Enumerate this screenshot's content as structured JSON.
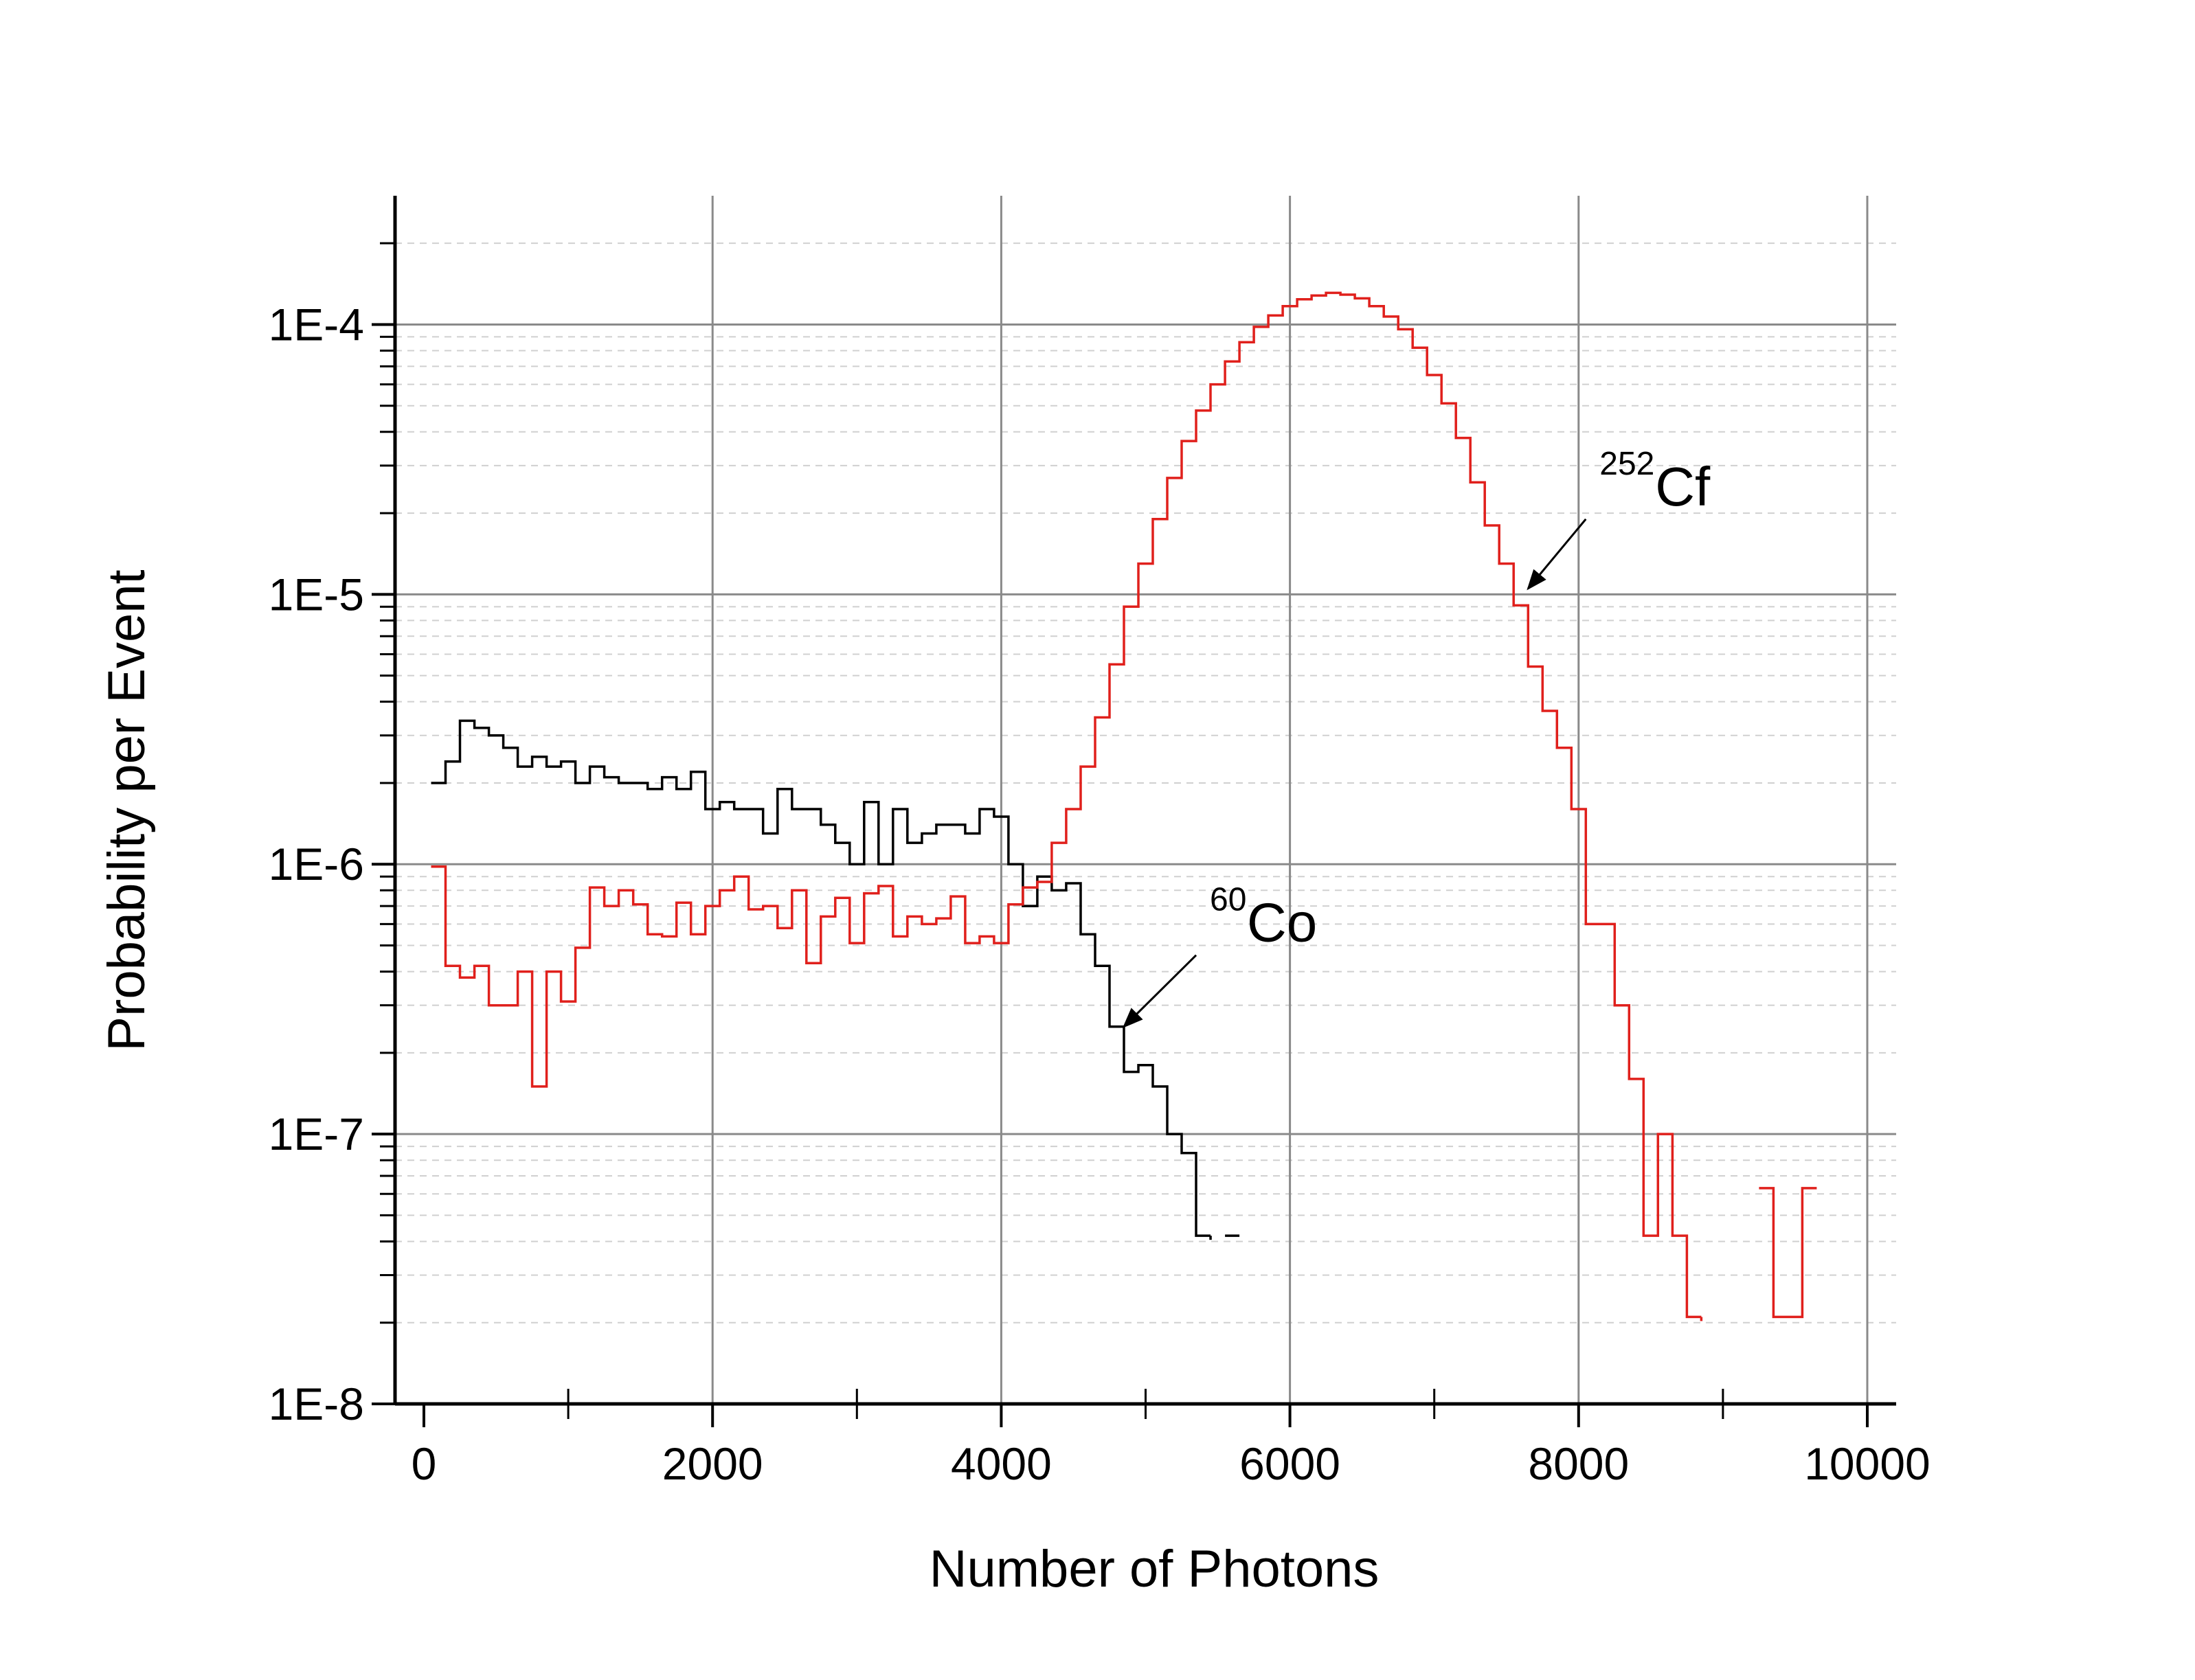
{
  "chart_data": {
    "type": "line",
    "title": "",
    "xlabel": "Number of Photons",
    "ylabel": "Probability per Event",
    "xlim": [
      -200,
      10200
    ],
    "ylim": [
      1e-08,
      0.0003
    ],
    "yscale": "log",
    "grid": true,
    "legend": "none",
    "x_ticks": [
      0,
      2000,
      4000,
      6000,
      8000,
      10000
    ],
    "x_tick_labels": [
      "0",
      "2000",
      "4000",
      "6000",
      "8000",
      "10000"
    ],
    "y_ticks": [
      1e-08,
      1e-07,
      1e-06,
      1e-05,
      0.0001
    ],
    "y_tick_labels": [
      "1E-8",
      "1E-7",
      "1E-6",
      "1E-5",
      "1E-4"
    ],
    "bin_width": 100,
    "series": [
      {
        "color": "#000000",
        "style": "step",
        "bin_starts": [
          50,
          150,
          250,
          350,
          450,
          550,
          650,
          750,
          850,
          950,
          1050,
          1150,
          1250,
          1350,
          1450,
          1550,
          1650,
          1750,
          1850,
          1950,
          2050,
          2150,
          2250,
          2350,
          2450,
          2550,
          2650,
          2750,
          2850,
          2950,
          3050,
          3150,
          3250,
          3350,
          3450,
          3550,
          3650,
          3750,
          3850,
          3950,
          4050,
          4150,
          4250,
          4350,
          4450,
          4550,
          4650,
          4750,
          4850,
          4950,
          5050,
          5150,
          5250,
          5350,
          5450,
          5550
        ],
        "values": [
          2e-06,
          2.4e-06,
          3.4e-06,
          3.2e-06,
          3e-06,
          2.7e-06,
          2.3e-06,
          2.5e-06,
          2.3e-06,
          2.4e-06,
          2e-06,
          2.3e-06,
          2.1e-06,
          2e-06,
          2e-06,
          1.9e-06,
          2.1e-06,
          1.9e-06,
          2.2e-06,
          1.6e-06,
          1.7e-06,
          1.6e-06,
          1.6e-06,
          1.3e-06,
          1.9e-06,
          1.6e-06,
          1.6e-06,
          1.4e-06,
          1.2e-06,
          1e-06,
          1.7e-06,
          1e-06,
          1.6e-06,
          1.2e-06,
          1.3e-06,
          1.4e-06,
          1.4e-06,
          1.3e-06,
          1.6e-06,
          1.5e-06,
          1e-06,
          7e-07,
          9e-07,
          8e-07,
          8.5e-07,
          5.5e-07,
          4.2e-07,
          2.5e-07,
          1.7e-07,
          1.8e-07,
          1.5e-07,
          1e-07,
          8.5e-08,
          4.2e-08,
          null,
          4.2e-08
        ]
      },
      {
        "color": "#e0201c",
        "style": "step",
        "bin_starts": [
          50,
          150,
          250,
          350,
          450,
          550,
          650,
          750,
          850,
          950,
          1050,
          1150,
          1250,
          1350,
          1450,
          1550,
          1650,
          1750,
          1850,
          1950,
          2050,
          2150,
          2250,
          2350,
          2450,
          2550,
          2650,
          2750,
          2850,
          2950,
          3050,
          3150,
          3250,
          3350,
          3450,
          3550,
          3650,
          3750,
          3850,
          3950,
          4050,
          4150,
          4250,
          4350,
          4450,
          4550,
          4650,
          4750,
          4850,
          4950,
          5050,
          5150,
          5250,
          5350,
          5450,
          5550,
          5650,
          5750,
          5850,
          5950,
          6050,
          6150,
          6250,
          6350,
          6450,
          6550,
          6650,
          6750,
          6850,
          6950,
          7050,
          7150,
          7250,
          7350,
          7450,
          7550,
          7650,
          7750,
          7850,
          7950,
          8050,
          8150,
          8250,
          8350,
          8450,
          8550,
          8650,
          8750,
          8850,
          8950,
          9050,
          9150,
          9250,
          9350,
          9450,
          9550
        ],
        "values": [
          9.8e-07,
          4.2e-07,
          3.8e-07,
          4.2e-07,
          3e-07,
          3e-07,
          4e-07,
          1.5e-07,
          4e-07,
          3.1e-07,
          4.9e-07,
          8.2e-07,
          7e-07,
          8e-07,
          7.1e-07,
          5.5e-07,
          5.4e-07,
          7.2e-07,
          5.5e-07,
          7e-07,
          8e-07,
          9e-07,
          6.8e-07,
          7e-07,
          5.8e-07,
          8e-07,
          4.3e-07,
          6.4e-07,
          7.5e-07,
          5.1e-07,
          7.8e-07,
          8.3e-07,
          5.4e-07,
          6.4e-07,
          6e-07,
          6.3e-07,
          7.6e-07,
          5.1e-07,
          5.4e-07,
          5.1e-07,
          7.1e-07,
          8.2e-07,
          8.6e-07,
          1.2e-06,
          1.6e-06,
          2.3e-06,
          3.5e-06,
          5.5e-06,
          9e-06,
          1.3e-05,
          1.9e-05,
          2.7e-05,
          3.7e-05,
          4.8e-05,
          6e-05,
          7.3e-05,
          8.6e-05,
          9.8e-05,
          0.000108,
          0.000117,
          0.000124,
          0.000128,
          0.000131,
          0.000129,
          0.000125,
          0.000117,
          0.000107,
          9.6e-05,
          8.2e-05,
          6.5e-05,
          5.1e-05,
          3.8e-05,
          2.6e-05,
          1.8e-05,
          1.3e-05,
          9.1e-06,
          5.4e-06,
          3.7e-06,
          2.7e-06,
          1.6e-06,
          6e-07,
          6e-07,
          3e-07,
          1.6e-07,
          4.2e-08,
          1e-07,
          4.2e-08,
          2.1e-08,
          null,
          null,
          null,
          null,
          6.3e-08,
          2.1e-08,
          2.1e-08,
          6.3e-08
        ]
      }
    ],
    "annotations": [
      {
        "sup": "252",
        "text": "Cf",
        "arrow_from": [
          8050,
          1.9e-05
        ],
        "arrow_to": [
          7650,
          1.05e-05
        ]
      },
      {
        "sup": "60",
        "text": "Co",
        "arrow_from": [
          5350,
          4.6e-07
        ],
        "arrow_to": [
          4850,
          2.5e-07
        ]
      }
    ]
  }
}
